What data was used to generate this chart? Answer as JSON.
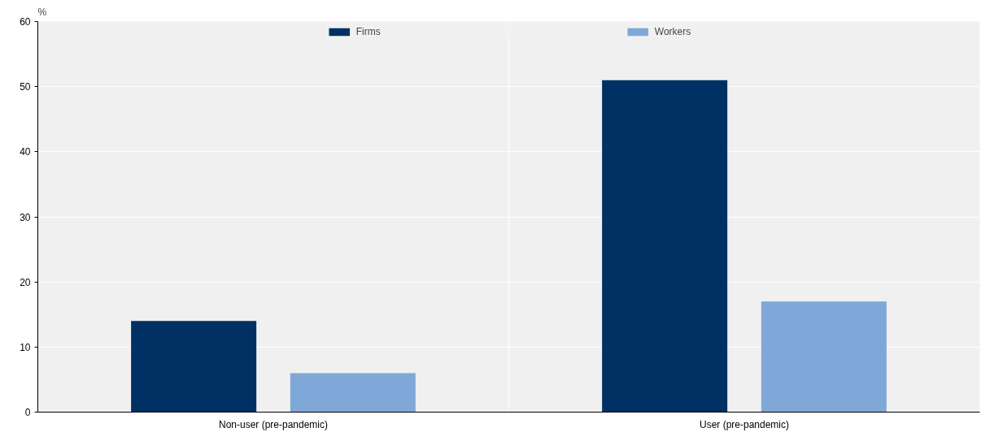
{
  "chart_data": {
    "type": "bar",
    "ylabel": "%",
    "categories": [
      "Non-user (pre-pandemic)",
      "User (pre-pandemic)"
    ],
    "series": [
      {
        "name": "Firms",
        "color": "#003064",
        "values": [
          14,
          51
        ]
      },
      {
        "name": "Workers",
        "color": "#7fa8d9",
        "values": [
          6,
          17
        ]
      }
    ],
    "ylim": [
      0,
      60
    ],
    "yticks": [
      0,
      10,
      20,
      30,
      40,
      50,
      60
    ],
    "grid": true,
    "legend": "top"
  }
}
